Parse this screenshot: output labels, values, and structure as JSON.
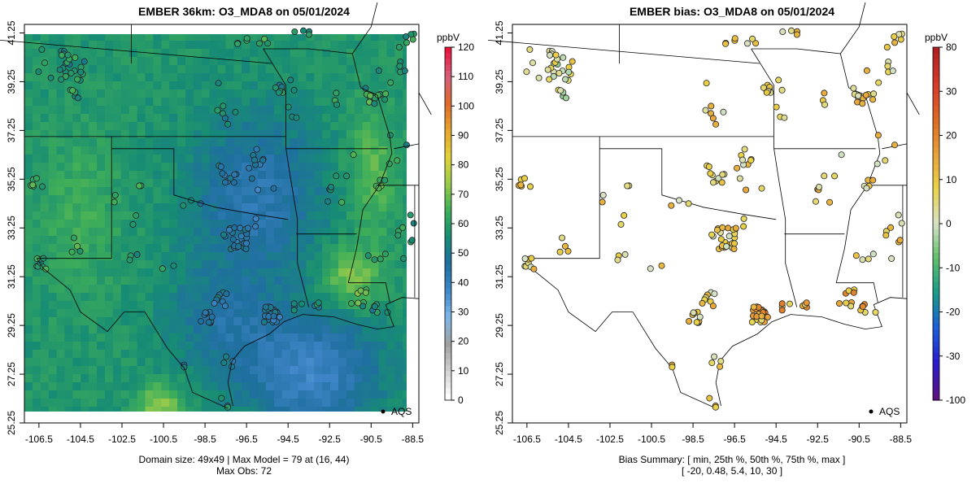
{
  "left": {
    "title": "EMBER 36km: O3_MDA8 on 05/01/2024",
    "footer_line1": "Domain size: 49x49 | Max Model = 79 at (16, 44)",
    "footer_line2": "Max Obs: 72",
    "legend_label": "AQS",
    "colorbar": {
      "unit": "ppbV",
      "ticks": [
        "0",
        "10",
        "20",
        "30",
        "40",
        "50",
        "60",
        "70",
        "80",
        "90",
        "100",
        "110",
        "120"
      ],
      "colors": [
        "#ffffff",
        "#d0d0d0",
        "#a0a0a0",
        "#7fb7e8",
        "#3f86c8",
        "#1f6f9f",
        "#178c74",
        "#3fae59",
        "#9acb4a",
        "#e1d23a",
        "#e5a42f",
        "#dc6b2c",
        "#d5607c",
        "#e8163c"
      ]
    }
  },
  "right": {
    "title": "EMBER bias: O3_MDA8 on 05/01/2024",
    "footer_line1": "Bias Summary: [ min, 25th %, 50th %, 75th %, max ]",
    "footer_line2": "[ -20,   0.48,   5.4,   10,   30 ]",
    "legend_label": "AQS",
    "colorbar": {
      "unit": "ppbV",
      "ticks": [
        "-100",
        "-30",
        "-20",
        "-10",
        "0",
        "10",
        "20",
        "30",
        "80"
      ],
      "colors": [
        "#5b1080",
        "#2a1cd0",
        "#1a5fd8",
        "#1a9a8a",
        "#5fbf6a",
        "#d8e2c8",
        "#e8d44a",
        "#e7a23a",
        "#dd6a24",
        "#d63b2a",
        "#b02020"
      ]
    }
  },
  "chart_data": [
    {
      "type": "heatmap",
      "title": "EMBER 36km: O3_MDA8 on 05/01/2024",
      "variable": "O3_MDA8",
      "date": "05/01/2024",
      "unit": "ppbV",
      "x_ticks": [
        "-106.5",
        "-104.5",
        "-102.5",
        "-100.5",
        "-98.5",
        "-96.5",
        "-94.5",
        "-92.5",
        "-90.5",
        "-88.5"
      ],
      "y_ticks": [
        "25.25",
        "27.25",
        "29.25",
        "31.25",
        "33.25",
        "35.25",
        "37.25",
        "39.25",
        "41.25"
      ],
      "xlim": [
        -107.2,
        -88.2
      ],
      "ylim": [
        25.25,
        41.6
      ],
      "color_range": [
        0,
        120
      ],
      "domain_size": "49x49",
      "max_model": 79,
      "max_model_cell": [
        16,
        44
      ],
      "max_obs": 72,
      "legend": "AQS"
    },
    {
      "type": "scatter",
      "title": "EMBER bias: O3_MDA8 on 05/01/2024",
      "variable": "O3_MDA8 bias",
      "date": "05/01/2024",
      "unit": "ppbV",
      "x_ticks": [
        "-106.5",
        "-104.5",
        "-102.5",
        "-100.5",
        "-98.5",
        "-96.5",
        "-94.5",
        "-92.5",
        "-90.5",
        "-88.5"
      ],
      "y_ticks": [
        "25.25",
        "27.25",
        "29.25",
        "31.25",
        "33.25",
        "35.25",
        "37.25",
        "39.25",
        "41.25"
      ],
      "xlim": [
        -107.2,
        -88.2
      ],
      "ylim": [
        25.25,
        41.6
      ],
      "color_ticks": [
        -100,
        -30,
        -20,
        -10,
        0,
        10,
        20,
        30,
        80
      ],
      "bias_summary": {
        "min": -20,
        "p25": 0.48,
        "p50": 5.4,
        "p75": 10,
        "max": 30
      },
      "legend": "AQS"
    }
  ]
}
